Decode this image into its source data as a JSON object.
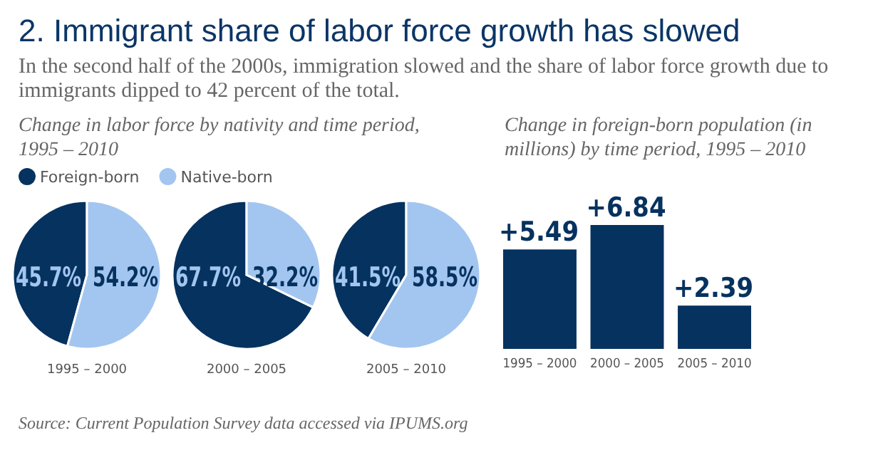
{
  "chart_data": [
    {
      "type": "pie",
      "title": "2. Immigrant share of labor force growth has slowed",
      "subtitle": "In the second half of the 2000s, immigration slowed and the share of labor force growth due to immigrants dipped to 42 percent of the total.",
      "annotations": [
        "Change in labor force by nativity and time period, 1995 – 2010",
        "Source: Current Population Survey data accessed via IPUMS.org"
      ],
      "categories": [
        "Foreign-born",
        "Native-born"
      ],
      "colors": [
        "#06325f",
        "#a3c6f0"
      ],
      "legend": "top left",
      "series": [
        {
          "name": "1995 – 2000",
          "values": [
            45.7,
            54.2
          ],
          "value_labels": [
            "45.7%",
            "54.2%"
          ]
        },
        {
          "name": "2000 – 2005",
          "values": [
            67.7,
            32.2
          ],
          "value_labels": [
            "67.7%",
            "32.2%"
          ]
        },
        {
          "name": "2005 – 2010",
          "values": [
            41.5,
            58.5
          ],
          "value_labels": [
            "41.5%",
            "58.5%"
          ]
        }
      ]
    },
    {
      "type": "bar",
      "title": "Change in foreign-born population (in millions) by time period, 1995 – 2010",
      "categories": [
        "1995 – 2000",
        "2000 – 2005",
        "2005 – 2010"
      ],
      "values": [
        5.49,
        6.84,
        2.39
      ],
      "value_labels": [
        "+5.49",
        "+6.84",
        "+2.39"
      ],
      "color": "#06325f"
    }
  ]
}
